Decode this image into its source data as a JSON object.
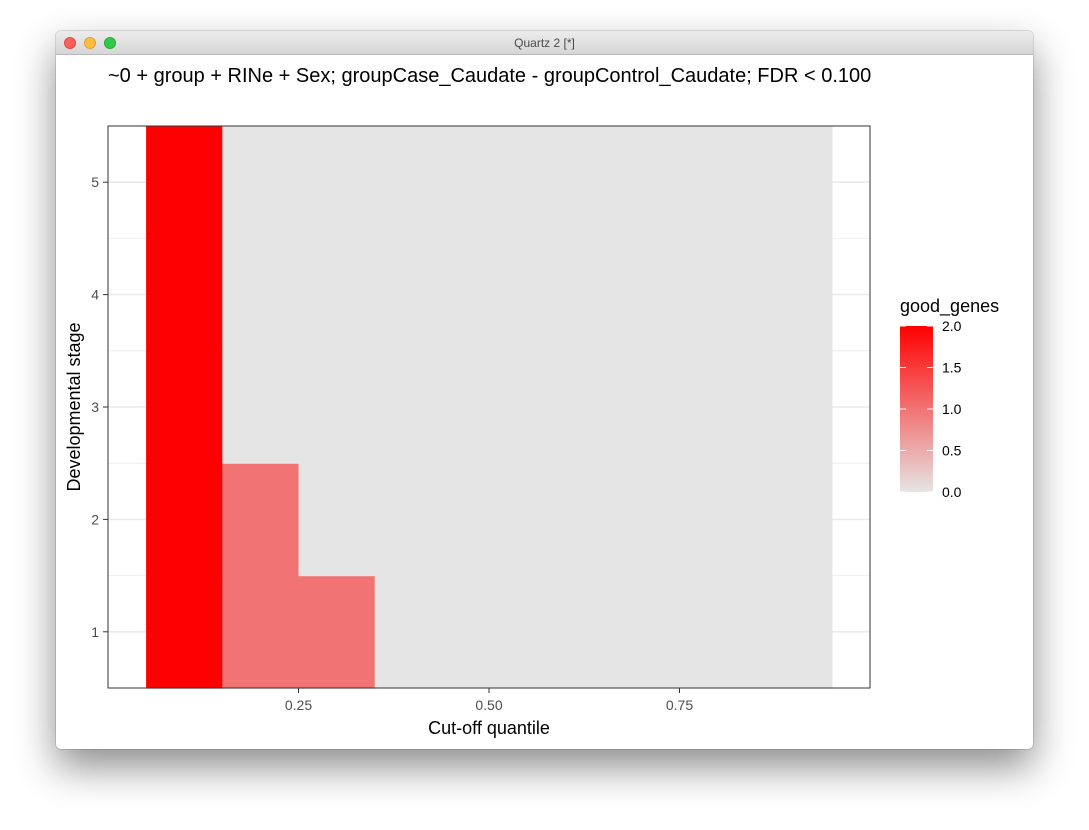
{
  "window": {
    "title": "Quartz 2 [*]"
  },
  "chart_data": {
    "type": "heatmap",
    "title": "~0 + group + RINe + Sex; groupCase_Caudate - groupControl_Caudate; FDR < 0.100",
    "xlabel": "Cut-off quantile",
    "ylabel": "Developmental stage",
    "xlim": [
      0.0,
      1.0
    ],
    "ylim": [
      0.5,
      5.5
    ],
    "x_ticks": [
      0.25,
      0.5,
      0.75
    ],
    "x_tick_labels": [
      "0.25",
      "0.50",
      "0.75"
    ],
    "y_ticks": [
      1,
      2,
      3,
      4,
      5
    ],
    "y_tick_labels": [
      "1",
      "2",
      "3",
      "4",
      "5"
    ],
    "x": [
      0.1,
      0.2,
      0.3,
      0.4,
      0.5,
      0.6,
      0.7,
      0.8,
      0.9
    ],
    "y": [
      1,
      2,
      3,
      4,
      5
    ],
    "values": [
      [
        2,
        1,
        1,
        0,
        0,
        0,
        0,
        0,
        0
      ],
      [
        2,
        1,
        0,
        0,
        0,
        0,
        0,
        0,
        0
      ],
      [
        2,
        0,
        0,
        0,
        0,
        0,
        0,
        0,
        0
      ],
      [
        2,
        0,
        0,
        0,
        0,
        0,
        0,
        0,
        0
      ],
      [
        2,
        0,
        0,
        0,
        0,
        0,
        0,
        0,
        0
      ]
    ],
    "legend": {
      "title": "good_genes",
      "placement": "right",
      "min": 0.0,
      "max": 2.0,
      "low_color": "#e5e5e5",
      "high_color": "#ff0000",
      "breaks": [
        0.0,
        0.5,
        1.0,
        1.5,
        2.0
      ],
      "break_labels": [
        "0.0",
        "0.5",
        "1.0",
        "1.5",
        "2.0"
      ]
    },
    "panel_background": "#ebebeb",
    "grid": true
  }
}
